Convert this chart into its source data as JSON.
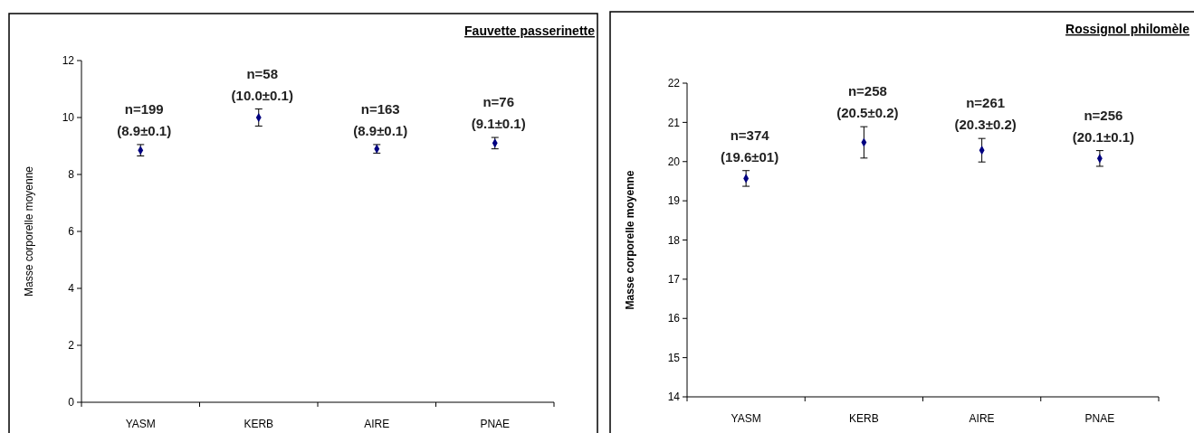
{
  "chart_data": [
    {
      "type": "scatter",
      "title": "Fauvette passerinette",
      "ylabel": "Masse corporelle moyenne",
      "categories": [
        "YASM",
        "KERB",
        "AIRE",
        "PNAE"
      ],
      "ylim": [
        0,
        12
      ],
      "yticks": [
        0,
        2,
        4,
        6,
        8,
        10,
        12
      ],
      "marker": "diamond",
      "grid": false,
      "series": [
        {
          "color": "#000080",
          "values": [
            8.85,
            10.0,
            8.9,
            9.1
          ],
          "errors": [
            0.2,
            0.3,
            0.15,
            0.2
          ],
          "value_labels": [
            "n=199\n(8.9±0.1)",
            "n=58\n(10.0±0.1)",
            "n=163\n(8.9±0.1)",
            "n=76\n(9.1±0.1)"
          ]
        }
      ]
    },
    {
      "type": "scatter",
      "title": "Rossignol philomèle",
      "ylabel": "Masse corporelle moyenne",
      "categories": [
        "YASM",
        "KERB",
        "AIRE",
        "PNAE"
      ],
      "ylim": [
        14,
        22
      ],
      "yticks": [
        14,
        15,
        16,
        17,
        18,
        19,
        20,
        21,
        22
      ],
      "marker": "diamond",
      "grid": false,
      "series": [
        {
          "color": "#000080",
          "values": [
            19.57,
            20.49,
            20.29,
            20.08
          ],
          "errors": [
            0.2,
            0.4,
            0.3,
            0.2
          ],
          "value_labels": [
            "n=374\n(19.6±01)",
            "n=258\n(20.5±0.2)",
            "n=261\n(20.3±0.2)",
            "n=256\n(20.1±0.1)"
          ]
        }
      ]
    }
  ]
}
